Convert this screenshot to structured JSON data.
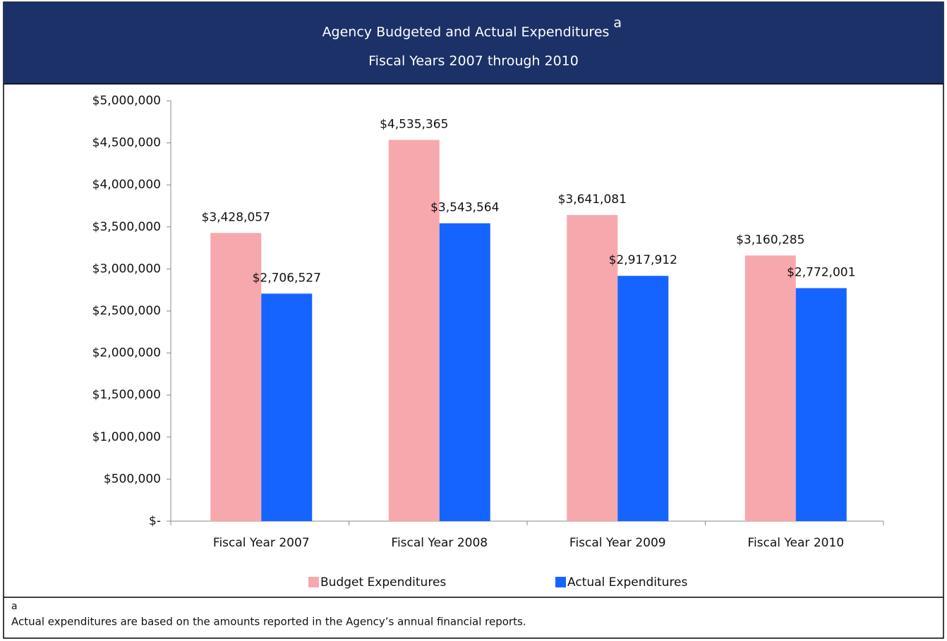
{
  "chart_data": {
    "type": "bar",
    "title": "Agency Budgeted and Actual Expenditures",
    "title_note": "a",
    "subtitle": "Fiscal Years 2007 through 2010",
    "categories": [
      "Fiscal Year 2007",
      "Fiscal Year 2008",
      "Fiscal Year 2009",
      "Fiscal Year 2010"
    ],
    "series": [
      {
        "name": "Budget Expenditures",
        "color": "#f7a8ad",
        "values": [
          3428057,
          4535365,
          3641081,
          3160285
        ],
        "value_labels": [
          "$3,428,057",
          "$4,535,365",
          "$3,641,081",
          "$3,160,285"
        ]
      },
      {
        "name": "Actual Expenditures",
        "color": "#1664ff",
        "values": [
          2706527,
          3543564,
          2917912,
          2772001
        ],
        "value_labels": [
          "$2,706,527",
          "$3,543,564",
          "$2,917,912",
          "$2,772,001"
        ]
      }
    ],
    "ylim": [
      0,
      5000000
    ],
    "yticks": [
      {
        "value": 0,
        "label": "$-"
      },
      {
        "value": 500000,
        "label": "$500,000"
      },
      {
        "value": 1000000,
        "label": "$1,000,000"
      },
      {
        "value": 1500000,
        "label": "$1,500,000"
      },
      {
        "value": 2000000,
        "label": "$2,000,000"
      },
      {
        "value": 2500000,
        "label": "$2,500,000"
      },
      {
        "value": 3000000,
        "label": "$3,000,000"
      },
      {
        "value": 3500000,
        "label": "$3,500,000"
      },
      {
        "value": 4000000,
        "label": "$4,000,000"
      },
      {
        "value": 4500000,
        "label": "$4,500,000"
      },
      {
        "value": 5000000,
        "label": "$5,000,000"
      }
    ],
    "legend": "bottom",
    "footnote": {
      "marker": "a",
      "text": "Actual expenditures are based on the amounts reported in the Agency’s annual financial reports."
    }
  }
}
